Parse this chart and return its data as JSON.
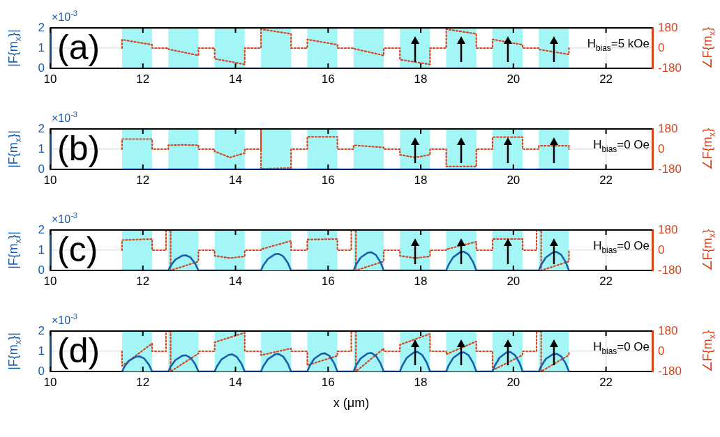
{
  "chart_data": [
    {
      "type": "line",
      "ylabel": "|F{m$_{x}$}|",
      "y2label": "∠F{m$_{x}$}",
      "annotations": [
        "(a)",
        "H$_{bias}$=5 kOe",
        "×10$^{-3}$"
      ],
      "xlim": [
        10,
        23
      ],
      "xticks": [
        10,
        12,
        14,
        16,
        18,
        20,
        22
      ],
      "ylim": [
        0,
        2
      ],
      "yticks": [
        0,
        1,
        2
      ],
      "y2lim": [
        -180,
        180
      ],
      "y2ticks": [
        -180,
        0,
        180
      ],
      "grid": true,
      "bands": [
        {
          "axis": "x",
          "from": 11.55,
          "to": 12.2,
          "color": "#a4f6f6"
        },
        {
          "axis": "x",
          "from": 12.55,
          "to": 13.2,
          "color": "#a4f6f6"
        },
        {
          "axis": "x",
          "from": 13.55,
          "to": 14.2,
          "color": "#a4f6f6"
        },
        {
          "axis": "x",
          "from": 14.55,
          "to": 15.2,
          "color": "#a4f6f6"
        },
        {
          "axis": "x",
          "from": 15.55,
          "to": 16.2,
          "color": "#a4f6f6"
        },
        {
          "axis": "x",
          "from": 16.55,
          "to": 17.2,
          "color": "#a4f6f6"
        },
        {
          "axis": "x",
          "from": 17.55,
          "to": 18.2,
          "color": "#a4f6f6"
        },
        {
          "axis": "x",
          "from": 18.55,
          "to": 19.2,
          "color": "#a4f6f6"
        },
        {
          "axis": "x",
          "from": 19.55,
          "to": 20.2,
          "color": "#a4f6f6"
        },
        {
          "axis": "x",
          "from": 20.55,
          "to": 21.2,
          "color": "#a4f6f6"
        }
      ],
      "series": [
        {
          "color": "#1a5fae",
          "x": [
            11.55,
            21.2
          ],
          "values": [
            0,
            0
          ]
        },
        {
          "color": "#d9441c",
          "axis": "y2",
          "line_style": "dotted",
          "x": [
            11.55,
            11.55,
            12.2,
            12.2,
            12.55,
            12.55,
            13.2,
            13.2,
            13.55,
            13.55,
            14.2,
            14.2,
            14.55,
            14.55,
            15.2,
            15.2,
            15.55,
            15.55,
            16.2,
            16.2,
            16.55,
            16.55,
            17.2,
            17.2,
            17.55,
            17.55,
            18.2,
            18.2,
            18.55,
            18.55,
            19.2,
            19.2,
            19.55,
            19.55,
            20.2,
            20.2,
            20.55,
            20.55,
            21.2,
            21.2
          ],
          "values": [
            0,
            75,
            30,
            0,
            0,
            -10,
            -65,
            0,
            0,
            -95,
            -145,
            0,
            0,
            168,
            127,
            0,
            0,
            77,
            30,
            0,
            0,
            -5,
            -65,
            0,
            0,
            -103,
            -145,
            0,
            0,
            168,
            127,
            0,
            0,
            77,
            30,
            0,
            0,
            -12,
            -56,
            0
          ]
        }
      ]
    },
    {
      "type": "line",
      "ylabel": "|F{m$_{x}$}|",
      "y2label": "∠F{m$_{x}$}",
      "annotations": [
        "(b)",
        "H$_{bias}$=0 Oe",
        "×10$^{-3}$"
      ],
      "xlim": [
        10,
        23
      ],
      "xticks": [
        10,
        12,
        14,
        16,
        18,
        20,
        22
      ],
      "ylim": [
        0,
        2
      ],
      "yticks": [
        0,
        1,
        2
      ],
      "y2lim": [
        -180,
        180
      ],
      "y2ticks": [
        -180,
        0,
        180
      ],
      "grid": true,
      "bands": [
        {
          "axis": "x",
          "from": 11.55,
          "to": 12.2,
          "color": "#a4f6f6"
        },
        {
          "axis": "x",
          "from": 12.55,
          "to": 13.2,
          "color": "#a4f6f6"
        },
        {
          "axis": "x",
          "from": 13.55,
          "to": 14.2,
          "color": "#a4f6f6"
        },
        {
          "axis": "x",
          "from": 14.55,
          "to": 15.2,
          "color": "#a4f6f6"
        },
        {
          "axis": "x",
          "from": 15.55,
          "to": 16.2,
          "color": "#a4f6f6"
        },
        {
          "axis": "x",
          "from": 16.55,
          "to": 17.2,
          "color": "#a4f6f6"
        },
        {
          "axis": "x",
          "from": 17.55,
          "to": 18.2,
          "color": "#a4f6f6"
        },
        {
          "axis": "x",
          "from": 18.55,
          "to": 19.2,
          "color": "#a4f6f6"
        },
        {
          "axis": "x",
          "from": 19.55,
          "to": 20.2,
          "color": "#a4f6f6"
        },
        {
          "axis": "x",
          "from": 20.55,
          "to": 21.2,
          "color": "#a4f6f6"
        }
      ],
      "series": [
        {
          "color": "#1a5fae",
          "x": [
            11.55,
            21.2
          ],
          "values": [
            0,
            0
          ]
        },
        {
          "color": "#d9441c",
          "axis": "y2",
          "line_style": "dotted",
          "x": [
            11.55,
            11.55,
            12.2,
            12.2,
            12.55,
            12.55,
            12.88,
            13.2,
            13.2,
            13.55,
            13.55,
            13.88,
            14.2,
            14.2,
            14.55,
            14.55,
            14.55,
            15.2,
            15.2,
            15.55,
            15.55,
            16.2,
            16.2,
            16.55,
            16.55,
            17.2,
            17.2,
            17.55,
            17.55,
            17.88,
            18.2,
            18.2,
            18.55,
            18.55,
            19.2,
            19.2,
            19.55,
            19.55,
            20.2,
            20.2,
            20.55,
            20.55,
            21.2,
            21.2
          ],
          "values": [
            0,
            90,
            90,
            0,
            0,
            35,
            38,
            35,
            0,
            0,
            -20,
            -74,
            -35,
            0,
            0,
            180,
            -175,
            -168,
            0,
            0,
            110,
            110,
            0,
            0,
            35,
            15,
            0,
            0,
            -50,
            -74,
            -50,
            0,
            0,
            -155,
            -155,
            0,
            0,
            107,
            107,
            0,
            0,
            30,
            30,
            0
          ]
        }
      ]
    },
    {
      "type": "line",
      "ylabel": "|F{m$_{x}$}|",
      "y2label": "∠F{m$_{x}$}",
      "annotations": [
        "(c)",
        "H$_{bias}$=0 Oe",
        "×10$^{-3}$"
      ],
      "xlim": [
        10,
        23
      ],
      "xticks": [
        10,
        12,
        14,
        16,
        18,
        20,
        22
      ],
      "ylim": [
        0,
        2
      ],
      "yticks": [
        0,
        1,
        2
      ],
      "y2lim": [
        -180,
        180
      ],
      "y2ticks": [
        -180,
        0,
        180
      ],
      "grid": true,
      "bands": [
        {
          "axis": "x",
          "from": 11.55,
          "to": 12.2,
          "color": "#a4f6f6"
        },
        {
          "axis": "x",
          "from": 12.55,
          "to": 13.2,
          "color": "#a4f6f6"
        },
        {
          "axis": "x",
          "from": 13.55,
          "to": 14.2,
          "color": "#a4f6f6"
        },
        {
          "axis": "x",
          "from": 14.55,
          "to": 15.2,
          "color": "#a4f6f6"
        },
        {
          "axis": "x",
          "from": 15.55,
          "to": 16.2,
          "color": "#a4f6f6"
        },
        {
          "axis": "x",
          "from": 16.55,
          "to": 17.2,
          "color": "#a4f6f6"
        },
        {
          "axis": "x",
          "from": 17.55,
          "to": 18.2,
          "color": "#a4f6f6"
        },
        {
          "axis": "x",
          "from": 18.55,
          "to": 19.2,
          "color": "#a4f6f6"
        },
        {
          "axis": "x",
          "from": 19.55,
          "to": 20.2,
          "color": "#a4f6f6"
        },
        {
          "axis": "x",
          "from": 20.55,
          "to": 21.2,
          "color": "#a4f6f6"
        }
      ],
      "series": [
        {
          "color": "#1a5fae",
          "x": [
            11.55,
            12.55,
            12.6,
            12.7,
            12.85,
            12.93,
            13.03,
            13.13,
            13.2,
            14.55,
            14.6,
            14.7,
            14.85,
            14.93,
            15.03,
            15.13,
            15.2,
            16.55,
            16.6,
            16.7,
            16.85,
            16.93,
            17.03,
            17.13,
            17.2,
            18.55,
            18.6,
            18.7,
            18.85,
            18.93,
            19.03,
            19.13,
            19.2,
            20.55,
            20.6,
            20.7,
            20.85,
            20.93,
            21.03,
            21.13,
            21.2
          ],
          "values": [
            0,
            0,
            0.23,
            0.53,
            0.73,
            0.75,
            0.64,
            0.34,
            0,
            0,
            0.25,
            0.57,
            0.8,
            0.82,
            0.7,
            0.37,
            0,
            0,
            0.27,
            0.63,
            0.87,
            0.9,
            0.77,
            0.41,
            0,
            0,
            0.28,
            0.65,
            0.9,
            0.93,
            0.79,
            0.42,
            0,
            0,
            0.28,
            0.64,
            0.89,
            0.92,
            0.78,
            0.41,
            0
          ]
        },
        {
          "color": "#d9441c",
          "axis": "y2",
          "line_style": "dotted",
          "x": [
            11.55,
            11.55,
            12.2,
            12.2,
            12.5,
            12.5,
            12.6,
            12.6,
            13.2,
            13.2,
            13.55,
            13.55,
            13.88,
            14.2,
            14.2,
            14.55,
            14.55,
            15.2,
            15.2,
            15.55,
            15.55,
            16.2,
            16.2,
            16.5,
            16.5,
            16.6,
            16.6,
            17.2,
            17.2,
            17.55,
            17.55,
            17.88,
            18.2,
            18.2,
            18.55,
            18.55,
            19.2,
            19.2,
            19.55,
            19.55,
            20.2,
            20.2,
            20.5,
            20.5,
            20.6,
            20.6,
            21.2,
            21.2
          ],
          "values": [
            0,
            90,
            100,
            0,
            0,
            180,
            175,
            -180,
            -100,
            0,
            0,
            -50,
            -70,
            -55,
            0,
            0,
            8,
            83,
            0,
            0,
            95,
            100,
            0,
            0,
            180,
            175,
            -180,
            -100,
            0,
            0,
            -50,
            -70,
            -55,
            0,
            0,
            8,
            75,
            0,
            0,
            100,
            100,
            0,
            0,
            180,
            175,
            -180,
            -100,
            0
          ]
        }
      ]
    },
    {
      "type": "line",
      "xlabel": "x (μm)",
      "ylabel": "|F{m$_{x}$}|",
      "y2label": "∠F{m$_{x}$}",
      "annotations": [
        "(d)",
        "H$_{bias}$=0 Oe",
        "×10$^{-3}$"
      ],
      "xlim": [
        10,
        23
      ],
      "xticks": [
        10,
        12,
        14,
        16,
        18,
        20,
        22
      ],
      "ylim": [
        0,
        2
      ],
      "yticks": [
        0,
        1,
        2
      ],
      "y2lim": [
        -180,
        180
      ],
      "y2ticks": [
        -180,
        0,
        180
      ],
      "grid": true,
      "bands": [
        {
          "axis": "x",
          "from": 11.55,
          "to": 12.2,
          "color": "#a4f6f6"
        },
        {
          "axis": "x",
          "from": 12.55,
          "to": 13.2,
          "color": "#a4f6f6"
        },
        {
          "axis": "x",
          "from": 13.55,
          "to": 14.2,
          "color": "#a4f6f6"
        },
        {
          "axis": "x",
          "from": 14.55,
          "to": 15.2,
          "color": "#a4f6f6"
        },
        {
          "axis": "x",
          "from": 15.55,
          "to": 16.2,
          "color": "#a4f6f6"
        },
        {
          "axis": "x",
          "from": 16.55,
          "to": 17.2,
          "color": "#a4f6f6"
        },
        {
          "axis": "x",
          "from": 17.55,
          "to": 18.2,
          "color": "#a4f6f6"
        },
        {
          "axis": "x",
          "from": 18.55,
          "to": 19.2,
          "color": "#a4f6f6"
        },
        {
          "axis": "x",
          "from": 19.55,
          "to": 20.2,
          "color": "#a4f6f6"
        },
        {
          "axis": "x",
          "from": 20.55,
          "to": 21.2,
          "color": "#a4f6f6"
        }
      ],
      "series": [
        {
          "color": "#1a5fae",
          "x": [
            11.55,
            11.6,
            11.7,
            11.85,
            11.93,
            12.03,
            12.13,
            12.2,
            12.55,
            12.6,
            12.7,
            12.85,
            12.93,
            13.03,
            13.13,
            13.2,
            13.55,
            13.6,
            13.7,
            13.85,
            13.93,
            14.03,
            14.13,
            14.2,
            14.55,
            14.6,
            14.7,
            14.85,
            14.93,
            15.03,
            15.13,
            15.2,
            15.55,
            15.6,
            15.7,
            15.85,
            15.93,
            16.03,
            16.13,
            16.2,
            16.55,
            16.6,
            16.7,
            16.85,
            16.93,
            17.03,
            17.13,
            17.2,
            17.55,
            17.6,
            17.7,
            17.85,
            17.93,
            18.03,
            18.13,
            18.2,
            18.55,
            18.6,
            18.7,
            18.85,
            18.93,
            19.03,
            19.13,
            19.2,
            19.55,
            19.6,
            19.7,
            19.85,
            19.93,
            20.03,
            20.13,
            20.2,
            20.55,
            20.6,
            20.7,
            20.85,
            20.93,
            21.03,
            21.13,
            21.2
          ],
          "values": [
            0,
            0.23,
            0.53,
            0.73,
            0.75,
            0.64,
            0.34,
            0,
            0,
            0.24,
            0.56,
            0.78,
            0.8,
            0.68,
            0.36,
            0,
            0,
            0.26,
            0.6,
            0.82,
            0.85,
            0.72,
            0.38,
            0,
            0,
            0.26,
            0.61,
            0.84,
            0.87,
            0.74,
            0.39,
            0,
            0,
            0.27,
            0.63,
            0.87,
            0.9,
            0.77,
            0.41,
            0,
            0,
            0.28,
            0.64,
            0.89,
            0.92,
            0.78,
            0.41,
            0,
            0,
            0.29,
            0.68,
            0.94,
            0.97,
            0.82,
            0.44,
            0,
            0,
            0.29,
            0.67,
            0.92,
            0.95,
            0.81,
            0.43,
            0,
            0,
            0.29,
            0.68,
            0.94,
            0.97,
            0.82,
            0.44,
            0,
            0,
            0.26,
            0.62,
            0.85,
            0.88,
            0.75,
            0.4,
            0
          ]
        },
        {
          "color": "#d9441c",
          "axis": "y2",
          "line_style": "dotted",
          "x": [
            11.55,
            11.55,
            12.2,
            12.2,
            12.5,
            12.5,
            12.6,
            12.6,
            13.2,
            13.2,
            13.55,
            13.55,
            14.2,
            14.2,
            14.55,
            14.55,
            15.2,
            15.2,
            15.55,
            15.55,
            16.2,
            16.2,
            16.5,
            16.5,
            16.6,
            16.6,
            17.2,
            17.2,
            17.55,
            17.55,
            18.2,
            18.2,
            18.55,
            18.55,
            19.2,
            19.2,
            19.55,
            19.55,
            20.2,
            20.2,
            20.5,
            20.5,
            20.6,
            20.6,
            21.2,
            21.2
          ],
          "values": [
            0,
            -130,
            70,
            0,
            0,
            180,
            175,
            -180,
            -20,
            0,
            0,
            80,
            165,
            0,
            0,
            -35,
            25,
            0,
            0,
            -125,
            -40,
            0,
            0,
            180,
            175,
            -180,
            25,
            0,
            0,
            58,
            155,
            0,
            0,
            -27,
            88,
            0,
            0,
            -170,
            -33,
            0,
            0,
            180,
            175,
            -180,
            -33,
            0
          ]
        }
      ]
    }
  ]
}
